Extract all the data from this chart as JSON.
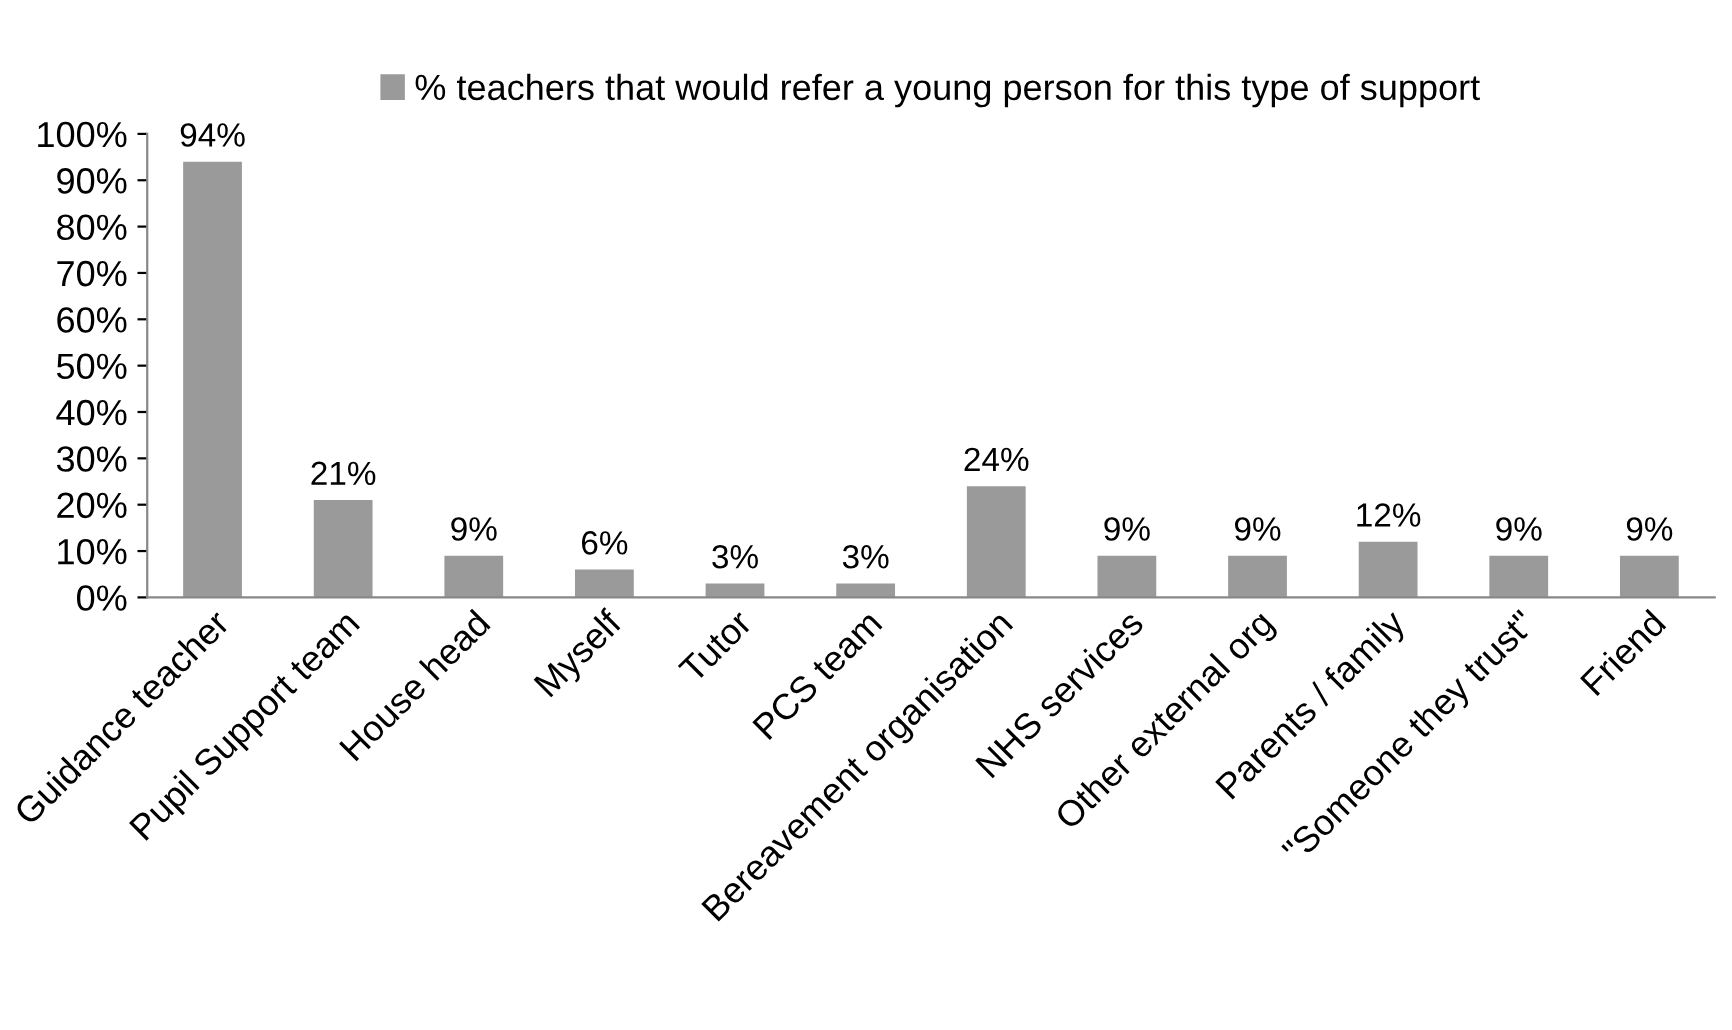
{
  "chart_data": {
    "type": "bar",
    "categories": [
      "Guidance teacher",
      "Pupil Support team",
      "House head",
      "Myself",
      "Tutor",
      "PCS team",
      "Bereavement organisation",
      "NHS services",
      "Other external org",
      "Parents / family",
      "\"Someone they trust\"",
      "Friend"
    ],
    "series": [
      {
        "name": "% teachers that would refer a young person for this type of support",
        "color": "#9a9a9a",
        "values": [
          94,
          21,
          9,
          6,
          3,
          3,
          24,
          9,
          9,
          12,
          9,
          9
        ],
        "value_labels": [
          "94%",
          "21%",
          "9%",
          "6%",
          "3%",
          "3%",
          "24%",
          "9%",
          "9%",
          "12%",
          "9%",
          "9%"
        ]
      }
    ],
    "ylim": [
      0,
      100
    ],
    "yticks": [
      {
        "value": 0,
        "label": "0%"
      },
      {
        "value": 10,
        "label": "10%"
      },
      {
        "value": 20,
        "label": "20%"
      },
      {
        "value": 30,
        "label": "30%"
      },
      {
        "value": 40,
        "label": "40%"
      },
      {
        "value": 50,
        "label": "50%"
      },
      {
        "value": 60,
        "label": "60%"
      },
      {
        "value": 70,
        "label": "70%"
      },
      {
        "value": 80,
        "label": "80%"
      },
      {
        "value": 90,
        "label": "90%"
      },
      {
        "value": 100,
        "label": "100%"
      }
    ],
    "legend": "top",
    "grid": false
  }
}
